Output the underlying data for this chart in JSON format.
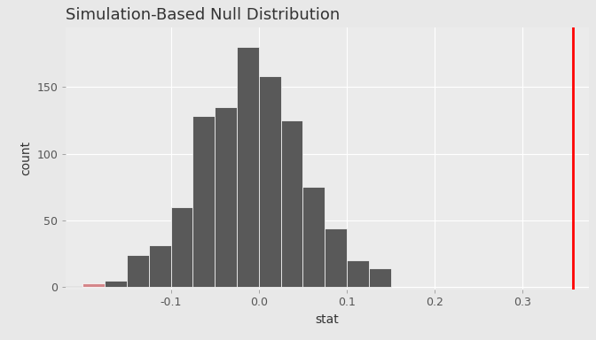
{
  "title": "Simulation-Based Null Distribution",
  "xlabel": "stat",
  "ylabel": "count",
  "bar_color": "#595959",
  "bar_edge_color": "#ffffff",
  "vline_x": 0.357,
  "vline_color": "red",
  "vline_linewidth": 2.0,
  "panel_background": "#ebebeb",
  "outer_background": "#e8e8e8",
  "grid_color": "#ffffff",
  "xlim": [
    -0.22,
    0.375
  ],
  "ylim": [
    -2,
    195
  ],
  "bin_edges": [
    -0.225,
    -0.2,
    -0.175,
    -0.15,
    -0.125,
    -0.1,
    -0.075,
    -0.05,
    -0.025,
    0.0,
    0.025,
    0.05,
    0.075,
    0.1,
    0.125,
    0.15
  ],
  "bin_heights": [
    1,
    3,
    5,
    24,
    31,
    60,
    128,
    135,
    180,
    158,
    125,
    75,
    44,
    20,
    14,
    0
  ],
  "pink_bar_index": 1,
  "pink_bar_color": "#d4868a",
  "yticks": [
    0,
    50,
    100,
    150
  ],
  "xticks": [
    -0.1,
    0.0,
    0.1,
    0.2,
    0.3
  ],
  "title_fontsize": 13,
  "axis_label_fontsize": 10,
  "tick_fontsize": 9,
  "title_color": "#333333",
  "axis_label_color": "#333333",
  "tick_color": "#555555"
}
